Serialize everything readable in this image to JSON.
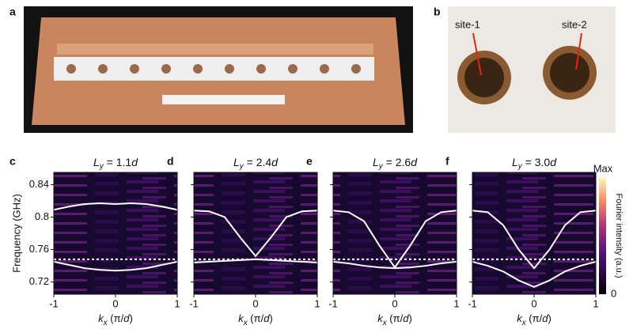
{
  "figure": {
    "panel_a": "a",
    "panel_b": "b",
    "site_1": "site-1",
    "site_2": "site-2"
  },
  "colorbar": {
    "max": "Max",
    "min": "0",
    "label": "Fourier intensity (a.u.)"
  },
  "chart_data": [
    {
      "type": "line",
      "panel": "c",
      "title": [
        "L",
        "y",
        " = 1.1",
        "d"
      ],
      "ylabel": "Frequency (GHz)",
      "xlabel": [
        "k",
        "x",
        " (π/",
        "d",
        ")"
      ],
      "xlim": [
        -1,
        1
      ],
      "xticks": [
        -1,
        0,
        1
      ],
      "ylim": [
        0.705,
        0.855
      ],
      "yticks": [
        0.72,
        0.76,
        0.8,
        0.84
      ],
      "reference": 0.748,
      "x": [
        -1,
        -0.75,
        -0.5,
        -0.25,
        0,
        0.25,
        0.5,
        0.75,
        1
      ],
      "series": [
        {
          "color": "#ffffff",
          "values": [
            0.809,
            0.813,
            0.816,
            0.817,
            0.816,
            0.817,
            0.816,
            0.813,
            0.809
          ]
        },
        {
          "color": "#ffffff",
          "values": [
            0.745,
            0.741,
            0.737,
            0.735,
            0.734,
            0.735,
            0.737,
            0.741,
            0.745
          ]
        }
      ]
    },
    {
      "type": "line",
      "panel": "d",
      "title": [
        "L",
        "y",
        " = 2.4",
        "d"
      ],
      "xlabel": [
        "k",
        "x",
        " (π/",
        "d",
        ")"
      ],
      "xlim": [
        -1,
        1
      ],
      "xticks": [
        -1,
        0,
        1
      ],
      "ylim": [
        0.705,
        0.855
      ],
      "yticks": [
        0.72,
        0.76,
        0.8,
        0.84
      ],
      "reference": 0.748,
      "x": [
        -1,
        -0.75,
        -0.5,
        -0.25,
        0,
        0.25,
        0.5,
        0.75,
        1
      ],
      "series": [
        {
          "color": "#ffffff",
          "values": [
            0.808,
            0.807,
            0.8,
            0.775,
            0.752,
            0.775,
            0.8,
            0.807,
            0.808
          ]
        },
        {
          "color": "#ffffff",
          "values": [
            0.744,
            0.745,
            0.746,
            0.747,
            0.748,
            0.747,
            0.746,
            0.745,
            0.744
          ]
        }
      ]
    },
    {
      "type": "line",
      "panel": "e",
      "title": [
        "L",
        "y",
        " = 2.6",
        "d"
      ],
      "xlabel": [
        "k",
        "x",
        " (π/",
        "d",
        ")"
      ],
      "xlim": [
        -1,
        1
      ],
      "xticks": [
        -1,
        0,
        1
      ],
      "ylim": [
        0.705,
        0.855
      ],
      "yticks": [
        0.72,
        0.76,
        0.8,
        0.84
      ],
      "reference": 0.748,
      "x": [
        -1,
        -0.75,
        -0.5,
        -0.25,
        0,
        0.25,
        0.5,
        0.75,
        1
      ],
      "series": [
        {
          "color": "#ffffff",
          "values": [
            0.808,
            0.806,
            0.795,
            0.765,
            0.738,
            0.765,
            0.795,
            0.806,
            0.808
          ]
        },
        {
          "color": "#ffffff",
          "values": [
            0.745,
            0.743,
            0.74,
            0.738,
            0.737,
            0.738,
            0.74,
            0.743,
            0.745
          ]
        }
      ]
    },
    {
      "type": "line",
      "panel": "f",
      "title": [
        "L",
        "y",
        " = 3.0",
        "d"
      ],
      "xlabel": [
        "k",
        "x",
        " (π/",
        "d",
        ")"
      ],
      "xlim": [
        -1,
        1
      ],
      "xticks": [
        -1,
        0,
        1
      ],
      "ylim": [
        0.705,
        0.855
      ],
      "yticks": [
        0.72,
        0.76,
        0.8,
        0.84
      ],
      "reference": 0.748,
      "x": [
        -1,
        -0.75,
        -0.5,
        -0.25,
        0,
        0.25,
        0.5,
        0.75,
        1
      ],
      "series": [
        {
          "color": "#ffffff",
          "values": [
            0.808,
            0.806,
            0.79,
            0.76,
            0.737,
            0.76,
            0.79,
            0.806,
            0.808
          ]
        },
        {
          "color": "#ffffff",
          "values": [
            0.745,
            0.74,
            0.733,
            0.722,
            0.714,
            0.722,
            0.733,
            0.74,
            0.745
          ]
        }
      ]
    }
  ]
}
